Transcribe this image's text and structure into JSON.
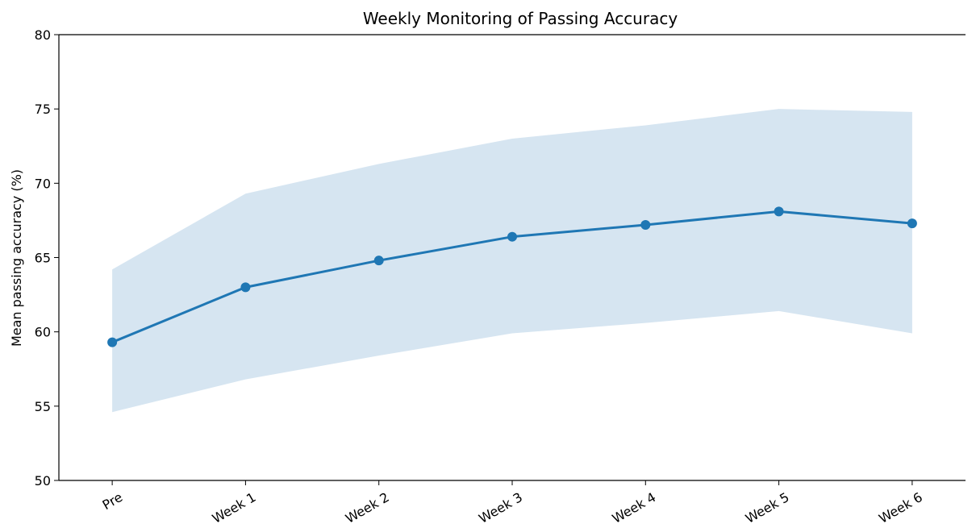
{
  "chart_data": {
    "type": "line",
    "title": "Weekly Monitoring of Passing Accuracy",
    "ylabel": "Mean passing accuracy (%)",
    "categories": [
      "Pre",
      "Week 1",
      "Week 2",
      "Week 3",
      "Week 4",
      "Week 5",
      "Week 6"
    ],
    "values": [
      59.3,
      63.0,
      64.8,
      66.4,
      67.2,
      68.1,
      67.3
    ],
    "upper": [
      64.2,
      69.3,
      71.3,
      73.0,
      73.9,
      75.0,
      74.8
    ],
    "lower": [
      54.6,
      56.8,
      58.4,
      59.9,
      60.6,
      61.4,
      59.9
    ],
    "color": "#1f77b4",
    "band_color": "#d6e5f1",
    "ylim": [
      50,
      80
    ],
    "yticks": [
      50,
      55,
      60,
      65,
      70,
      75,
      80
    ],
    "grid": false
  }
}
